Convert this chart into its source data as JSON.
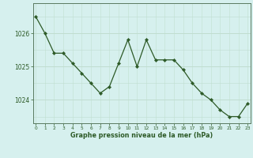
{
  "x": [
    0,
    1,
    2,
    3,
    4,
    5,
    6,
    7,
    8,
    9,
    10,
    11,
    12,
    13,
    14,
    15,
    16,
    17,
    18,
    19,
    20,
    21,
    22,
    23
  ],
  "y": [
    1026.5,
    1026.0,
    1025.4,
    1025.4,
    1025.1,
    1024.8,
    1024.5,
    1024.2,
    1024.4,
    1025.1,
    1025.8,
    1025.0,
    1025.8,
    1025.2,
    1025.2,
    1025.2,
    1024.9,
    1024.5,
    1024.2,
    1024.0,
    1023.7,
    1023.5,
    1023.5,
    1023.9
  ],
  "line_color": "#2d5a27",
  "marker_color": "#2d5a27",
  "bg_color": "#d6f0ee",
  "grid_color_h": "#c0ddd0",
  "grid_color_v": "#c8e6da",
  "xlabel": "Graphe pression niveau de la mer (hPa)",
  "xlabel_color": "#2d5a27",
  "tick_color": "#2d5a27",
  "axis_color": "#5a7a60",
  "ylim_min": 1023.3,
  "ylim_max": 1026.9,
  "yticks": [
    1024,
    1025,
    1026
  ],
  "xticks": [
    0,
    1,
    2,
    3,
    4,
    5,
    6,
    7,
    8,
    9,
    10,
    11,
    12,
    13,
    14,
    15,
    16,
    17,
    18,
    19,
    20,
    21,
    22,
    23
  ]
}
